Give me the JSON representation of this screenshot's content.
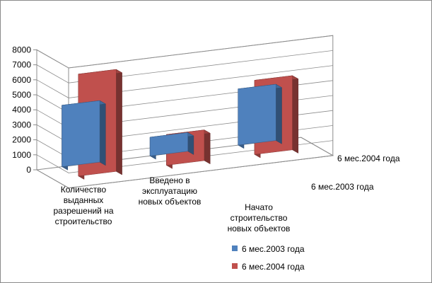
{
  "chart_data": {
    "type": "bar",
    "title": "",
    "xlabel": "",
    "ylabel": "",
    "ylim": [
      0,
      8000
    ],
    "yticks": [
      0,
      1000,
      2000,
      3000,
      4000,
      5000,
      6000,
      7000,
      8000
    ],
    "categories": [
      [
        "Количество",
        "выданных",
        "разрешений на",
        "строительство"
      ],
      [
        "Введено в",
        "эксплуатацию",
        "новых объектов"
      ],
      [
        "Начато",
        "строительство",
        "новых объектов"
      ]
    ],
    "series": [
      {
        "name": "6 мес.2003 года",
        "values": [
          4100,
          1250,
          3750
        ],
        "color": "#4f81bd"
      },
      {
        "name": "6 мес.2004 года",
        "values": [
          6800,
          2050,
          4950
        ],
        "color": "#c0504d"
      }
    ],
    "grid": true,
    "legend_position": "bottom-right"
  }
}
